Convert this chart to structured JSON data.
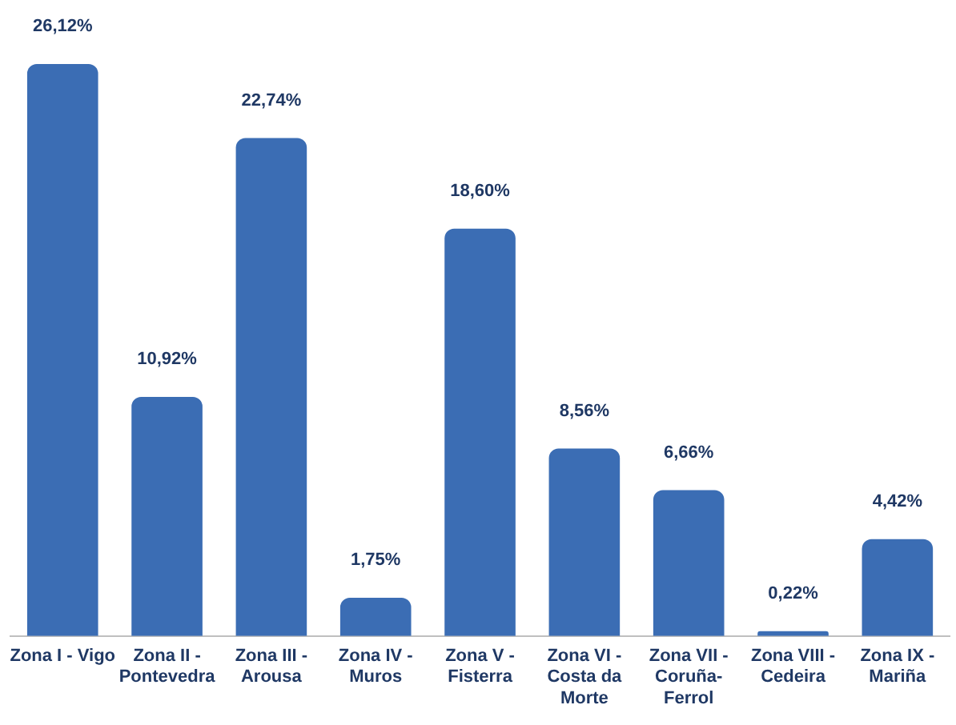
{
  "chart_data": {
    "type": "bar",
    "categories": [
      "Zona I - Vigo",
      "Zona II - Pontevedra",
      "Zona III - Arousa",
      "Zona IV - Muros",
      "Zona V - Fisterra",
      "Zona VI - Costa da Morte",
      "Zona VII - Coruña-Ferrol",
      "Zona VIII - Cedeira",
      "Zona IX - Mariña"
    ],
    "values": [
      26.12,
      10.92,
      22.74,
      1.75,
      18.6,
      8.56,
      6.66,
      0.22,
      4.42
    ],
    "value_labels": [
      "26,12%",
      "10,92%",
      "22,74%",
      "1,75%",
      "18,60%",
      "8,56%",
      "6,66%",
      "0,22%",
      "4,42%"
    ],
    "color": "#3b6db4",
    "grid": false,
    "legend": false
  }
}
